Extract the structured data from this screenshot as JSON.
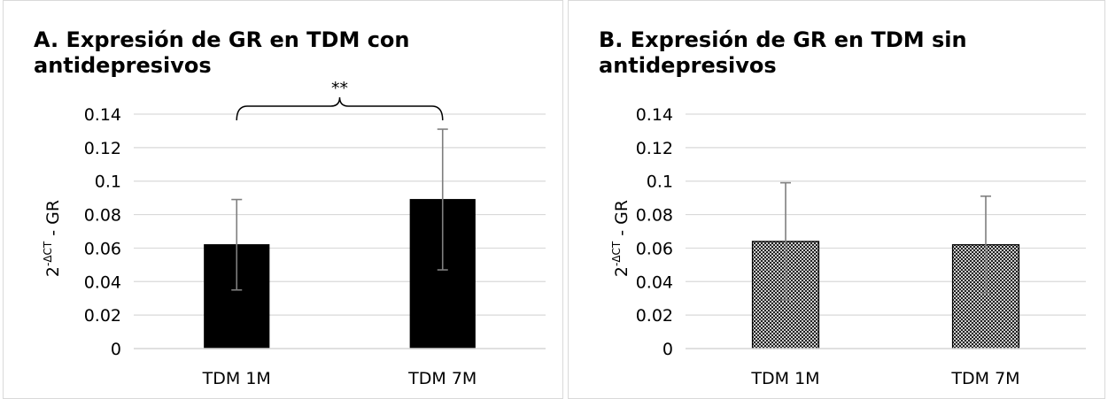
{
  "colors": {
    "gridline": "#d9d9d9",
    "bar_solid": "#000000",
    "error_bar": "#7f7f7f"
  },
  "chart_data": [
    {
      "type": "bar",
      "title_lines": [
        "A. Expresión de GR en TDM con",
        "antidepresivos"
      ],
      "categories": [
        "TDM 1M",
        "TDM 7M"
      ],
      "values": [
        0.062,
        0.089
      ],
      "error": [
        0.027,
        0.042
      ],
      "ylabel_main": "2",
      "ylabel_sup": "-ΔCT",
      "ylabel_rest": " - GR",
      "ylim": [
        0,
        0.14
      ],
      "yticks": [
        0,
        0.02,
        0.04,
        0.06,
        0.08,
        0.1,
        0.12,
        0.14
      ],
      "yticklabels": [
        "0",
        "0.02",
        "0.04",
        "0.06",
        "0.08",
        "0.1",
        "0.12",
        "0.14"
      ],
      "grid": true,
      "fill": "solid",
      "significance": "**"
    },
    {
      "type": "bar",
      "title_lines": [
        "B. Expresión de GR en TDM sin",
        "antidepresivos"
      ],
      "categories": [
        "TDM 1M",
        "TDM 7M"
      ],
      "values": [
        0.064,
        0.062
      ],
      "error": [
        0.035,
        0.029
      ],
      "ylabel_main": "2",
      "ylabel_sup": "-ΔCT",
      "ylabel_rest": " - GR",
      "ylim": [
        0,
        0.14
      ],
      "yticks": [
        0,
        0.02,
        0.04,
        0.06,
        0.08,
        0.1,
        0.12,
        0.14
      ],
      "yticklabels": [
        "0",
        "0.02",
        "0.04",
        "0.06",
        "0.08",
        "0.1",
        "0.12",
        "0.14"
      ],
      "grid": true,
      "fill": "crosshatch",
      "significance": ""
    }
  ]
}
